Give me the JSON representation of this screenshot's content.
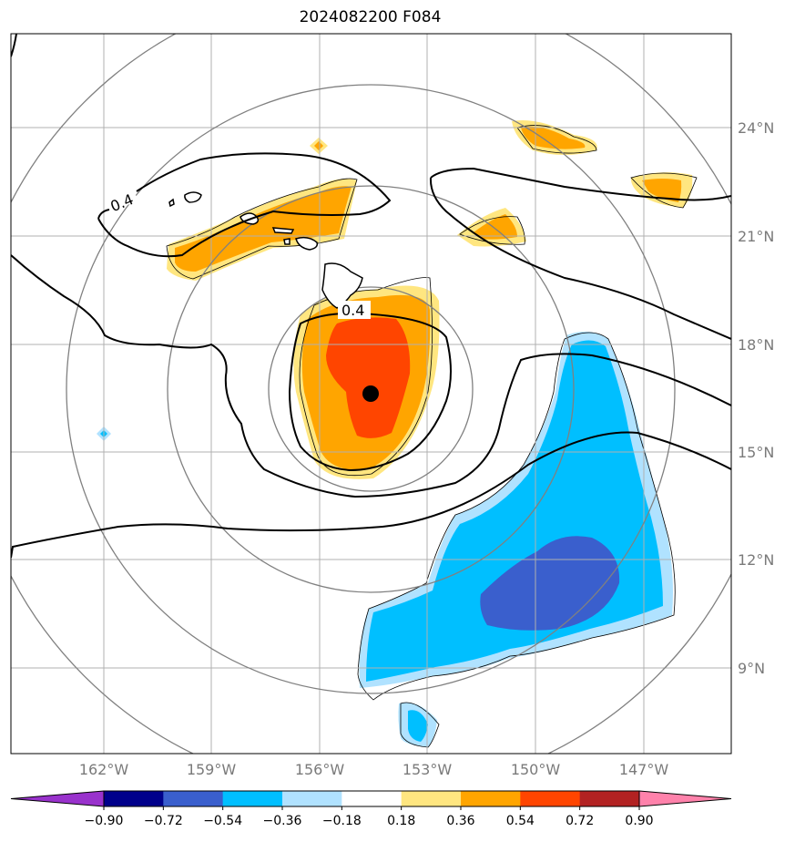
{
  "title": "2024082200 F084",
  "map": {
    "lon_labels": [
      "162°W",
      "159°W",
      "156°W",
      "153°W",
      "150°W",
      "147°W"
    ],
    "lat_labels": [
      "24°N",
      "21°N",
      "18°N",
      "15°N",
      "12°N",
      "9°N"
    ],
    "contour_labels": [
      "0.4",
      "0.4"
    ],
    "center_marker": "storm-center"
  },
  "colorbar": {
    "ticks": [
      "−0.90",
      "−0.72",
      "−0.54",
      "−0.36",
      "−0.18",
      "0.18",
      "0.36",
      "0.54",
      "0.72",
      "0.90"
    ],
    "colors": [
      "#9932CC",
      "#00008B",
      "#3A5FCD",
      "#00BFFF",
      "#B0E2FF",
      "#FFFFFF",
      "#FFE680",
      "#FFA500",
      "#FF4500",
      "#B22222",
      "#FF82AB"
    ]
  }
}
